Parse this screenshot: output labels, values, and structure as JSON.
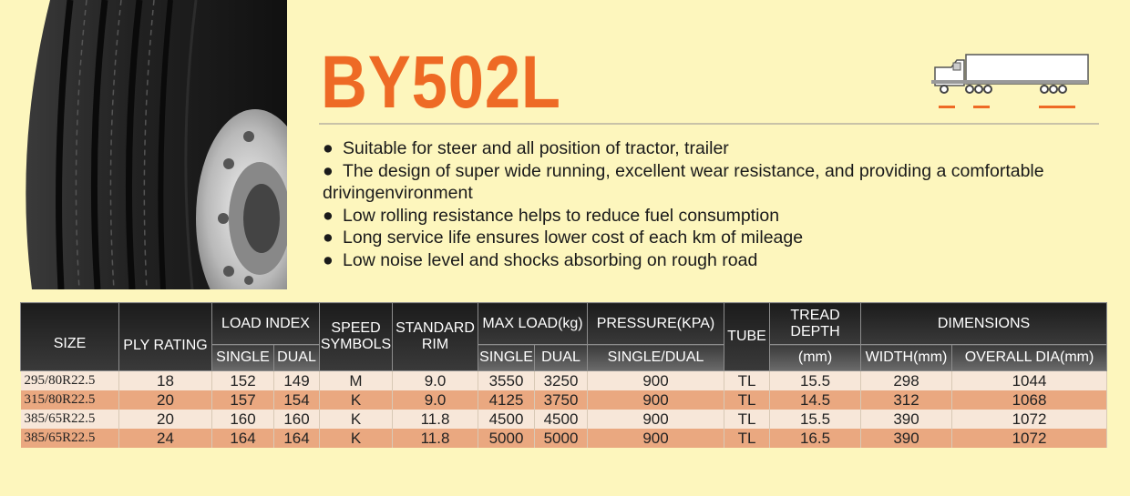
{
  "product": {
    "model": "BY502L",
    "features": [
      "Suitable for steer and all position of tractor, trailer",
      "The design of super wide running, excellent wear resistance, and providing a comfortable drivingenvironment",
      "Low rolling resistance helps to reduce fuel consumption",
      "Long service life ensures lower cost of each km of mileage",
      "Low noise level and shocks absorbing on rough road"
    ]
  },
  "icons": {
    "tire": "tire-image",
    "truck": "tractor-trailer-position-icon",
    "bullet": "●"
  },
  "colors": {
    "background": "#fdf6bd",
    "accent": "#ee6a25",
    "header": "#2d2d2d",
    "row_light": "#f7e7d9",
    "row_dark": "#eaa880"
  },
  "table": {
    "headers": {
      "size": "SIZE",
      "ply_rating": "PLY RATING",
      "load_index": "LOAD INDEX",
      "speed_symbols": "SPEED SYMBOLS",
      "standard_rim": "STANDARD RIM",
      "max_load": "MAX LOAD(kg)",
      "pressure": "PRESSURE(KPA)",
      "tube": "TUBE",
      "tread_depth": "TREAD DEPTH",
      "tread_unit": "(mm)",
      "dimensions": "DIMENSIONS",
      "single": "SINGLE",
      "dual": "DUAL",
      "single_dual": "SINGLE/DUAL",
      "width": "WIDTH(mm)",
      "overall_dia": "OVERALL DIA(mm)"
    },
    "rows": [
      {
        "size": "295/80R22.5",
        "ply": "18",
        "li_single": "152",
        "li_dual": "149",
        "speed": "M",
        "rim": "9.0",
        "ml_single": "3550",
        "ml_dual": "3250",
        "pressure": "900",
        "tube": "TL",
        "tread": "15.5",
        "width": "298",
        "dia": "1044"
      },
      {
        "size": "315/80R22.5",
        "ply": "20",
        "li_single": "157",
        "li_dual": "154",
        "speed": "K",
        "rim": "9.0",
        "ml_single": "4125",
        "ml_dual": "3750",
        "pressure": "900",
        "tube": "TL",
        "tread": "14.5",
        "width": "312",
        "dia": "1068"
      },
      {
        "size": "385/65R22.5",
        "ply": "20",
        "li_single": "160",
        "li_dual": "160",
        "speed": "K",
        "rim": "11.8",
        "ml_single": "4500",
        "ml_dual": "4500",
        "pressure": "900",
        "tube": "TL",
        "tread": "15.5",
        "width": "390",
        "dia": "1072"
      },
      {
        "size": "385/65R22.5",
        "ply": "24",
        "li_single": "164",
        "li_dual": "164",
        "speed": "K",
        "rim": "11.8",
        "ml_single": "5000",
        "ml_dual": "5000",
        "pressure": "900",
        "tube": "TL",
        "tread": "16.5",
        "width": "390",
        "dia": "1072"
      }
    ]
  }
}
